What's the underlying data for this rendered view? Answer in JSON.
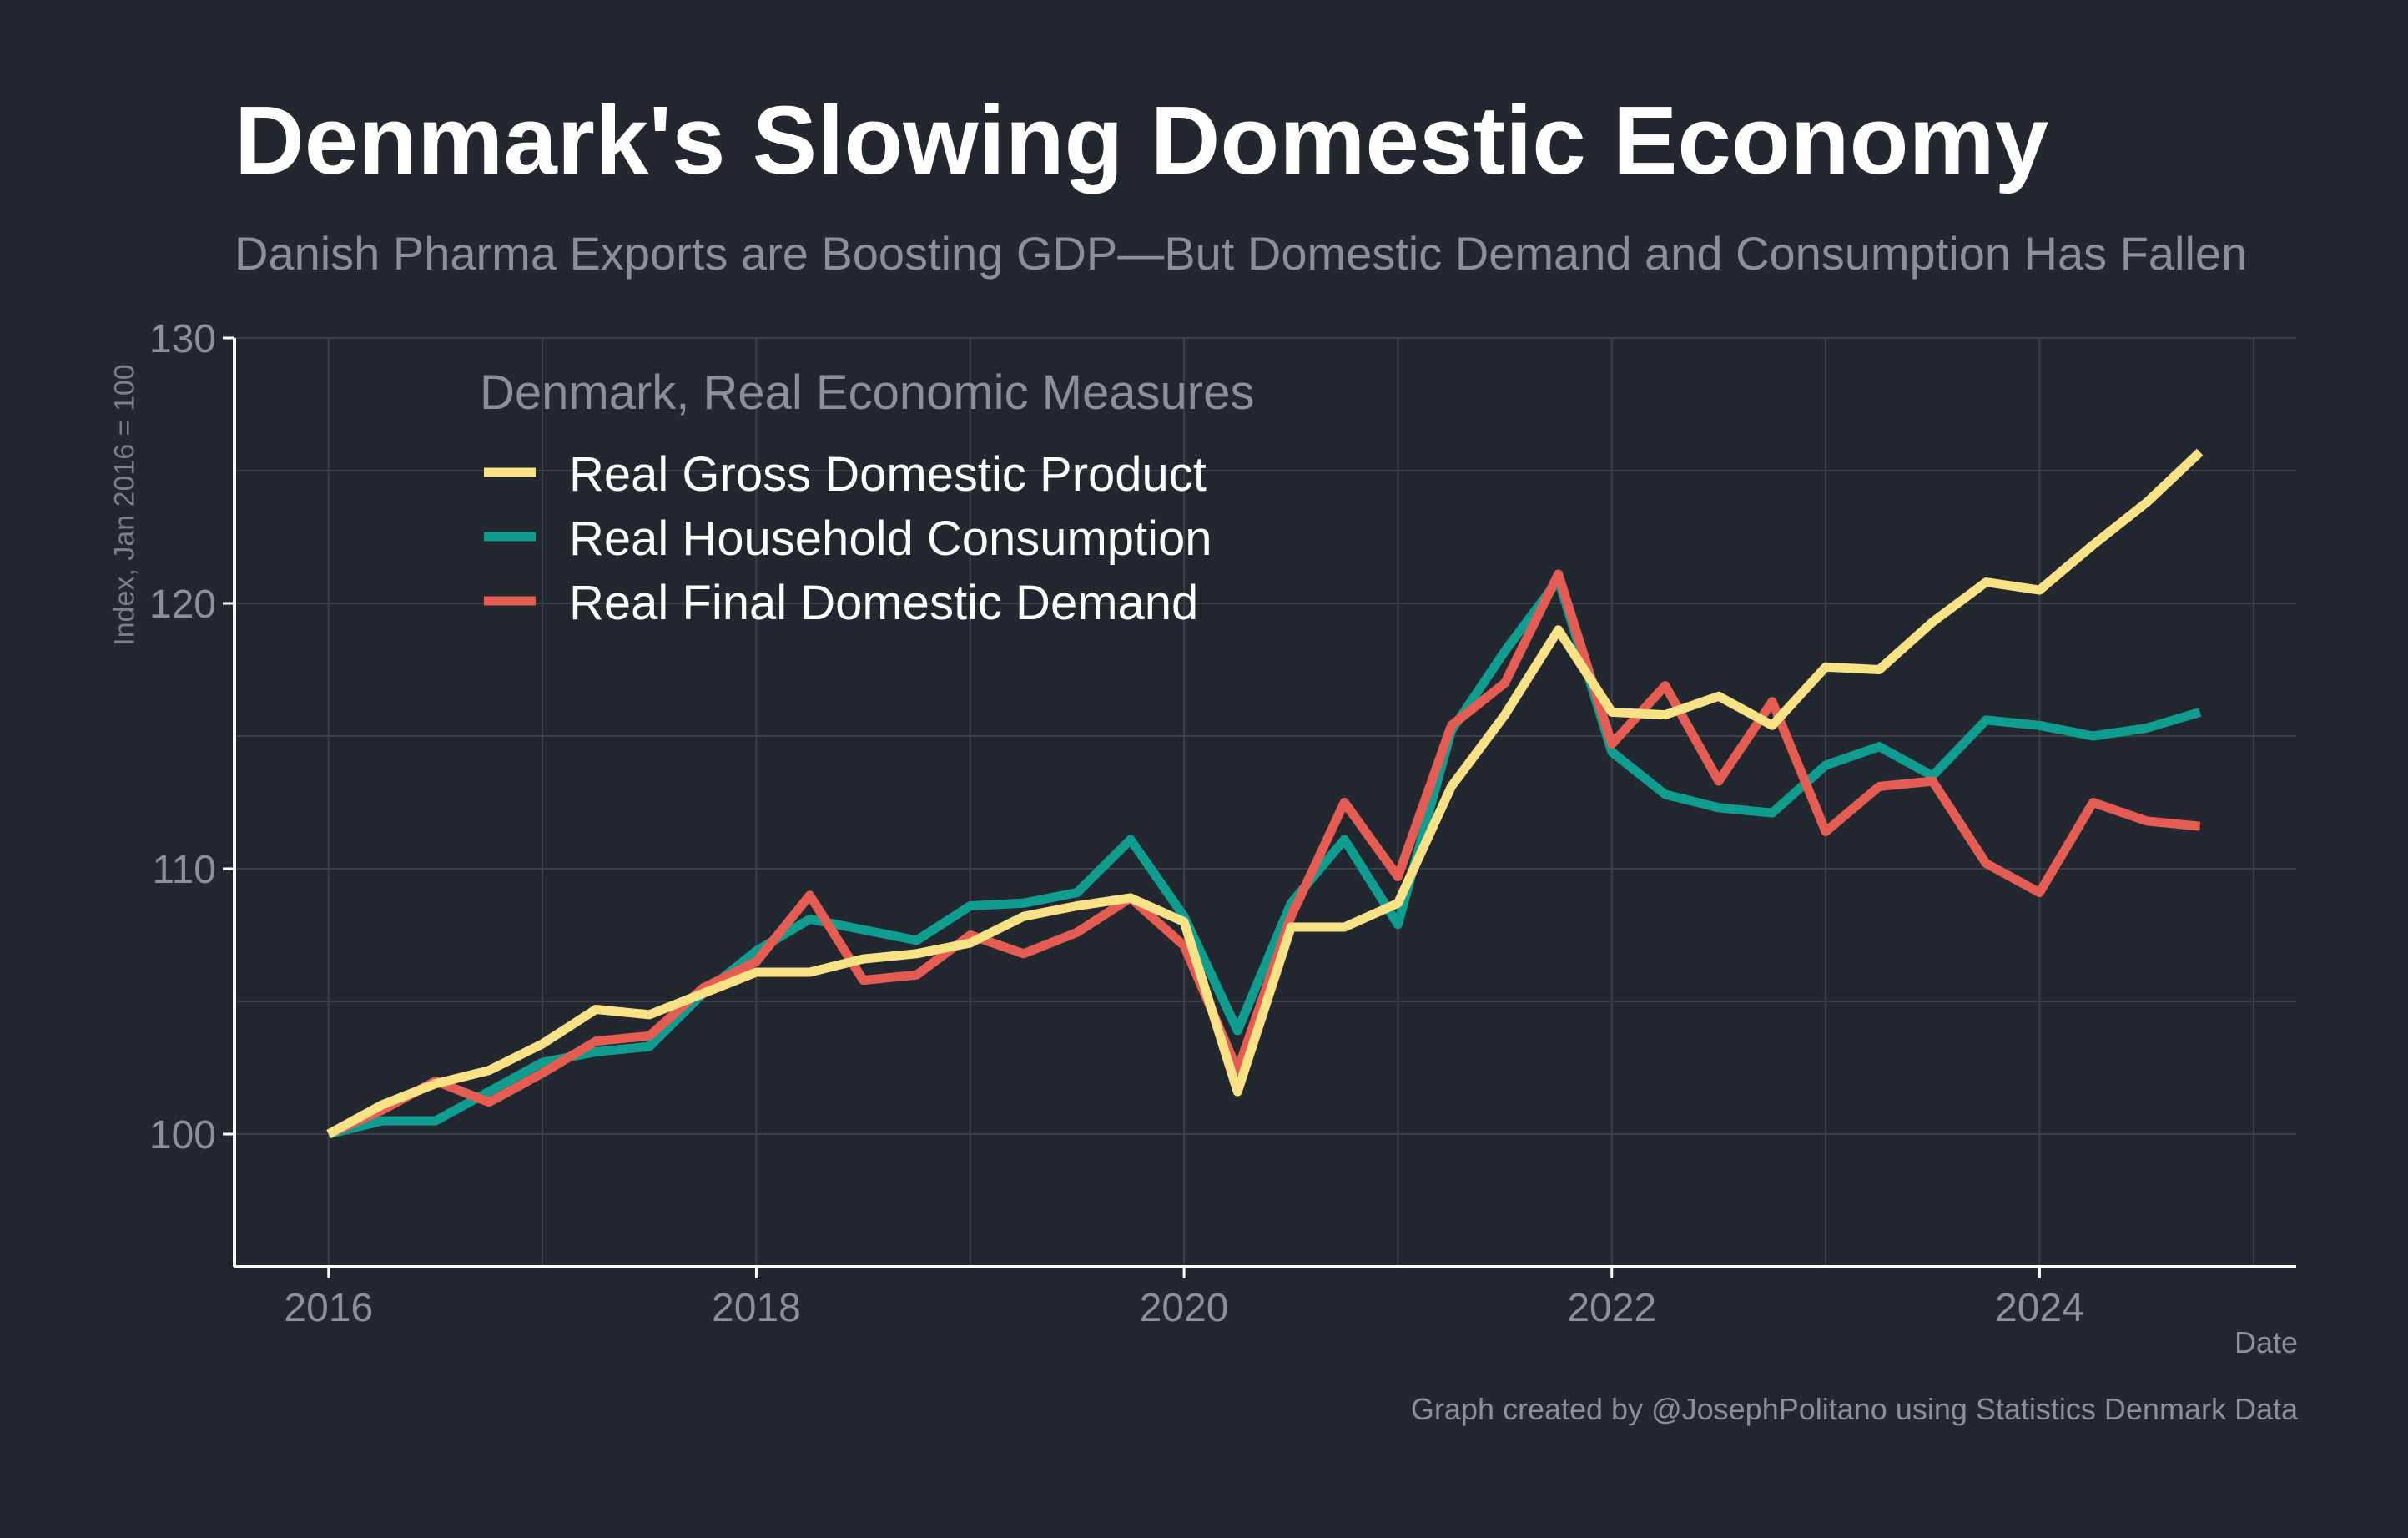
{
  "header": {
    "title": "Denmark's Slowing Domestic Economy",
    "subtitle": "Danish Pharma Exports are Boosting GDP—But Domestic Demand and Consumption Has Fallen"
  },
  "footer": {
    "caption": "Graph created by @JosephPolitano using Statistics Denmark Data"
  },
  "colors": {
    "background": "#23272f",
    "grid": "#3a3f48",
    "axis": "#ffffff"
  },
  "chart_data": {
    "type": "line",
    "title": "Denmark's Slowing Domestic Economy",
    "subtitle": "Danish Pharma Exports are Boosting GDP—But Domestic Demand and Consumption Has Fallen",
    "xlabel": "Date",
    "ylabel": "Index, Jan 2016 = 100",
    "ylim": [
      95,
      130
    ],
    "xlim": [
      2015.56,
      2025.2
    ],
    "yticks": [
      100,
      110,
      120,
      130
    ],
    "xticks": [
      2016,
      2018,
      2020,
      2022,
      2024
    ],
    "xtick_labels": [
      "2016",
      "2018",
      "2020",
      "2022",
      "2024"
    ],
    "grid": true,
    "legend": {
      "title": "Denmark, Real Economic Measures",
      "placement": "top-left"
    },
    "x": [
      2016.0,
      2016.25,
      2016.5,
      2016.75,
      2017.0,
      2017.25,
      2017.5,
      2017.75,
      2018.0,
      2018.25,
      2018.5,
      2018.75,
      2019.0,
      2019.25,
      2019.5,
      2019.75,
      2020.0,
      2020.25,
      2020.5,
      2020.75,
      2021.0,
      2021.25,
      2021.5,
      2021.75,
      2022.0,
      2022.25,
      2022.5,
      2022.75,
      2023.0,
      2023.25,
      2023.5,
      2023.75,
      2024.0,
      2024.25,
      2024.5,
      2024.75
    ],
    "series": [
      {
        "name": "Real Gross Domestic Product",
        "color": "#f9e286",
        "values": [
          100.0,
          101.1,
          101.9,
          102.4,
          103.4,
          104.7,
          104.5,
          105.3,
          106.1,
          106.1,
          106.6,
          106.8,
          107.2,
          108.2,
          108.6,
          108.9,
          108.0,
          101.6,
          107.8,
          107.8,
          108.7,
          113.1,
          115.8,
          119.0,
          115.9,
          115.8,
          116.5,
          115.4,
          117.6,
          117.5,
          119.3,
          120.8,
          120.5,
          122.2,
          123.8,
          125.7
        ]
      },
      {
        "name": "Real Household Consumption",
        "color": "#0f9d8f",
        "values": [
          100.0,
          100.5,
          100.5,
          101.6,
          102.7,
          103.1,
          103.3,
          105.3,
          106.9,
          108.1,
          107.7,
          107.3,
          108.6,
          108.7,
          109.1,
          111.1,
          108.2,
          103.9,
          108.7,
          111.1,
          107.9,
          115.2,
          118.2,
          120.9,
          114.4,
          112.8,
          112.3,
          112.1,
          113.9,
          114.6,
          113.5,
          115.6,
          115.4,
          115.0,
          115.3,
          115.9
        ]
      },
      {
        "name": "Real Final Domestic Demand",
        "color": "#e55c52",
        "values": [
          100.0,
          100.9,
          102.0,
          101.2,
          102.3,
          103.5,
          103.7,
          105.5,
          106.5,
          109.0,
          105.8,
          106.0,
          107.5,
          106.8,
          107.6,
          108.9,
          107.1,
          102.4,
          108.2,
          112.5,
          109.7,
          115.4,
          117.0,
          121.1,
          114.7,
          116.9,
          113.3,
          116.3,
          111.4,
          113.1,
          113.3,
          110.2,
          109.1,
          112.5,
          111.8,
          111.6
        ]
      }
    ]
  }
}
